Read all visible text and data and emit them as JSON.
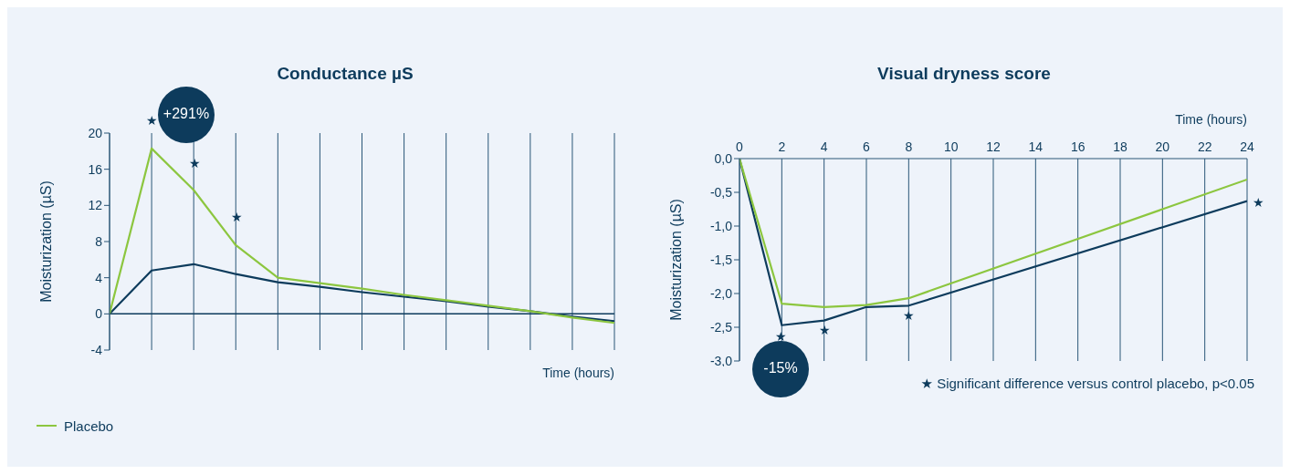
{
  "chart_data": [
    {
      "type": "line",
      "title": "Conductance µS",
      "xlabel": "Time (hours)",
      "ylabel": "Moisturization (µS)",
      "categories": [
        null,
        null,
        null,
        null,
        null,
        null,
        null,
        null,
        null,
        null,
        null,
        null,
        null
      ],
      "ylim": [
        -4,
        20
      ],
      "yticks": [
        -4,
        0,
        4,
        8,
        12,
        16,
        20
      ],
      "grid": "x",
      "legend": "bottom left",
      "ref_lines": [
        {
          "axis": "y",
          "value": 0,
          "color": "#0d3b5c"
        }
      ],
      "series": [
        {
          "color": "#0d3b5c",
          "values": [
            0,
            4.8,
            5.5,
            4.4,
            3.5,
            3.0,
            2.4,
            1.9,
            1.4,
            0.8,
            0.3,
            -0.3,
            -0.8
          ]
        },
        {
          "name": "Placebo",
          "color": "#8cc63f",
          "values": [
            0,
            18.3,
            13.7,
            7.6,
            4.0,
            3.4,
            2.8,
            2.1,
            1.5,
            0.9,
            0.3,
            -0.4,
            -1.0
          ]
        }
      ],
      "annotations": [
        "+291%",
        "★",
        "★",
        "★"
      ]
    },
    {
      "type": "line",
      "title": "Visual dryness score",
      "xlabel": "Time (hours)",
      "ylabel": "Moisturization (µS)",
      "xlim": [
        0,
        24
      ],
      "xticks": [
        0,
        2,
        4,
        6,
        8,
        10,
        12,
        14,
        16,
        18,
        20,
        22,
        24
      ],
      "ylim": [
        -3,
        0
      ],
      "yticks": [
        {
          "value": -3,
          "label": "-3,0"
        },
        {
          "value": -2.5,
          "label": "-2,5"
        },
        {
          "value": -2,
          "label": "-2,0"
        },
        {
          "value": -1.5,
          "label": "-1,5"
        },
        {
          "value": -1,
          "label": "-1,0"
        },
        {
          "value": -0.5,
          "label": "-0,5"
        },
        {
          "value": 0,
          "label": "0,0"
        }
      ],
      "grid": "x",
      "series": [
        {
          "color": "#0d3b5c",
          "x": [
            0,
            2,
            4,
            6,
            8,
            24
          ],
          "values": [
            0,
            -2.47,
            -2.4,
            -2.2,
            -2.18,
            -0.63
          ]
        },
        {
          "color": "#8cc63f",
          "x": [
            0,
            2,
            4,
            6,
            8,
            24
          ],
          "values": [
            0,
            -2.15,
            -2.2,
            -2.17,
            -2.07,
            -0.31
          ]
        }
      ],
      "annotations": [
        "-15%",
        "★ Significant difference versus control placebo, p<0.05",
        "★",
        "★",
        "★",
        "★"
      ]
    }
  ]
}
